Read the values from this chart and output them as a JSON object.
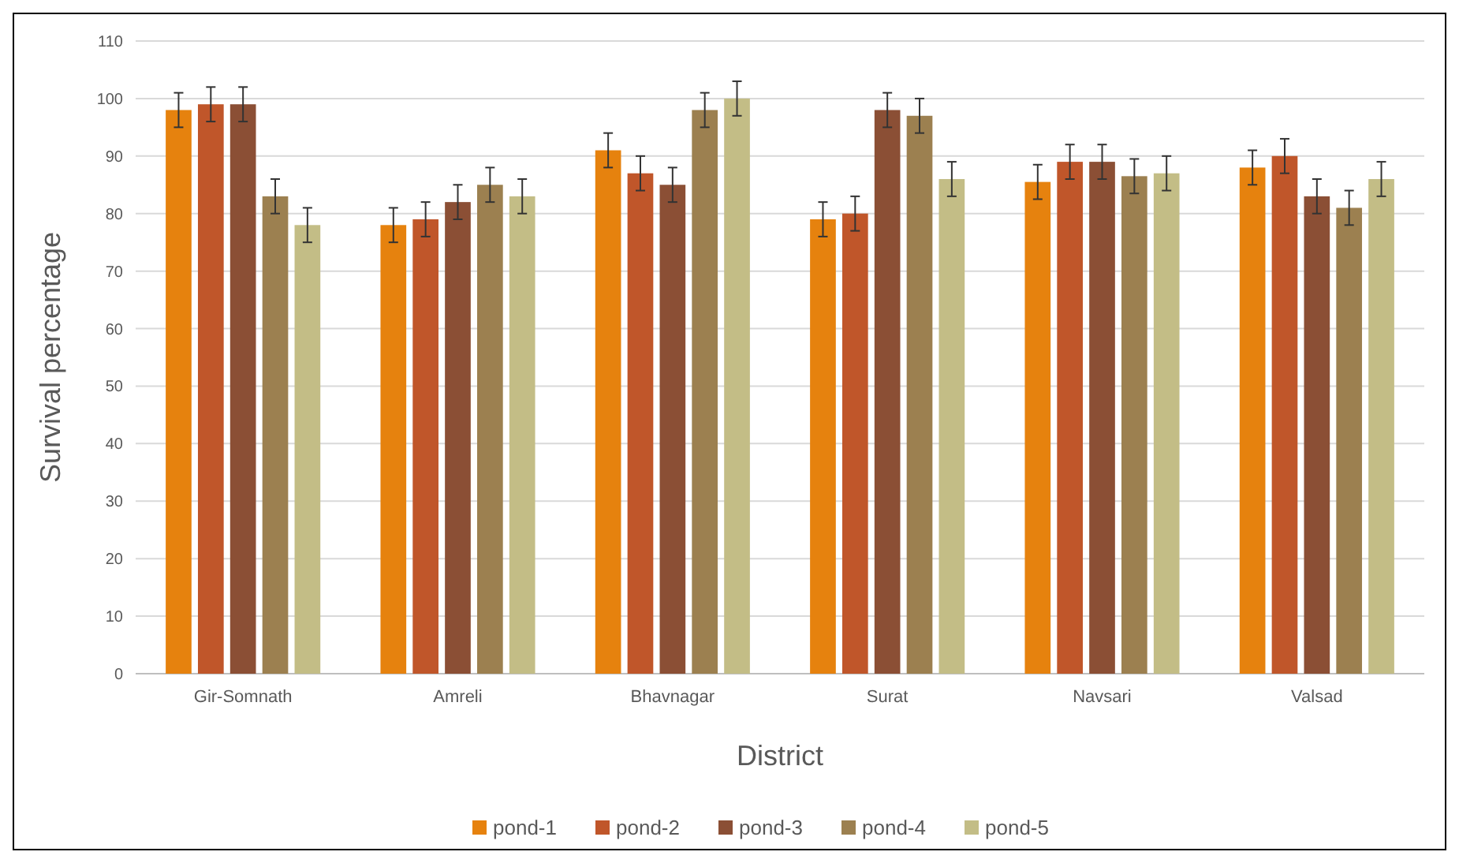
{
  "chart_data": {
    "type": "bar",
    "xlabel": "District",
    "ylabel": "Survival percentage",
    "categories": [
      "Gir-Somnath",
      "Amreli",
      "Bhavnagar",
      "Surat",
      "Navsari",
      "Valsad"
    ],
    "series": [
      {
        "name": "pond-1",
        "color": "#e6820e",
        "values": [
          98,
          78,
          91,
          79,
          85.5,
          88
        ],
        "errors": [
          3,
          3,
          3,
          3,
          3,
          3
        ]
      },
      {
        "name": "pond-2",
        "color": "#c0562a",
        "values": [
          99,
          79,
          87,
          80,
          89,
          90
        ],
        "errors": [
          3,
          3,
          3,
          3,
          3,
          3
        ]
      },
      {
        "name": "pond-3",
        "color": "#8b4f35",
        "values": [
          99,
          82,
          85,
          98,
          89,
          83
        ],
        "errors": [
          3,
          3,
          3,
          3,
          3,
          3
        ]
      },
      {
        "name": "pond-4",
        "color": "#9c8050",
        "values": [
          83,
          85,
          98,
          97,
          86.5,
          81
        ],
        "errors": [
          3,
          3,
          3,
          3,
          3,
          3
        ]
      },
      {
        "name": "pond-5",
        "color": "#c3bd86",
        "values": [
          78,
          83,
          100,
          86,
          87,
          86
        ],
        "errors": [
          3,
          3,
          3,
          3,
          3,
          3
        ]
      }
    ],
    "ylim": [
      0,
      110
    ],
    "yticks": [
      0,
      10,
      20,
      30,
      40,
      50,
      60,
      70,
      80,
      90,
      100,
      110
    ],
    "grid": "y",
    "legend": "bottom"
  }
}
